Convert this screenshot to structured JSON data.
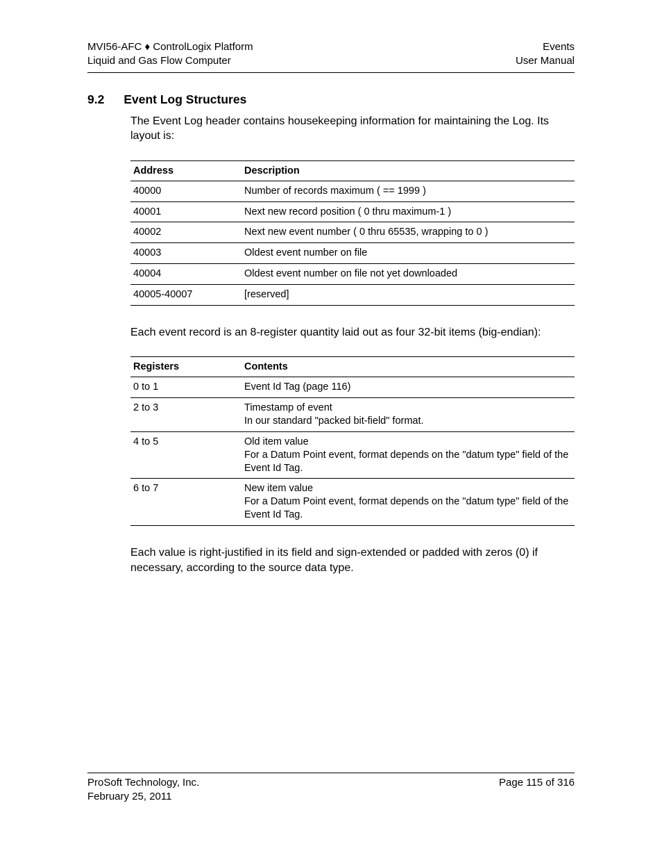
{
  "header": {
    "left_line1": "MVI56-AFC ♦ ControlLogix Platform",
    "left_line2": "Liquid and Gas Flow Computer",
    "right_line1": "Events",
    "right_line2": "User Manual"
  },
  "section": {
    "number": "9.2",
    "title": "Event Log Structures",
    "intro": "The Event Log header contains housekeeping information for maintaining the Log. Its layout is:"
  },
  "table1": {
    "col1_header": "Address",
    "col2_header": "Description",
    "rows": [
      {
        "c1": "40000",
        "c2": "Number of records maximum ( == 1999 )"
      },
      {
        "c1": "40001",
        "c2": "Next new record position ( 0 thru maximum-1 )"
      },
      {
        "c1": "40002",
        "c2": "Next new event number ( 0 thru 65535, wrapping to 0 )"
      },
      {
        "c1": "40003",
        "c2": "Oldest event number on file"
      },
      {
        "c1": "40004",
        "c2": "Oldest event number on file not yet downloaded"
      },
      {
        "c1": "40005-40007",
        "c2": "[reserved]"
      }
    ]
  },
  "mid_text": "Each event record is an 8-register quantity laid out as four 32-bit items (big-endian):",
  "table2": {
    "col1_header": "Registers",
    "col2_header": "Contents",
    "rows": [
      {
        "c1": "0 to 1",
        "c2": "Event Id Tag (page 116)"
      },
      {
        "c1": "2 to 3",
        "c2": "Timestamp of event\nIn our standard \"packed bit-field\" format."
      },
      {
        "c1": "4 to 5",
        "c2": "Old item value\nFor a Datum Point event, format depends on the \"datum type\" field of the Event Id Tag."
      },
      {
        "c1": "6 to 7",
        "c2": "New item value\nFor a Datum Point event, format depends on the \"datum type\" field of the Event Id Tag."
      }
    ]
  },
  "closing": "Each value is right-justified in its field and sign-extended or padded with zeros (0) if necessary, according to the source data type.",
  "footer": {
    "left_line1": "ProSoft Technology, Inc.",
    "left_line2": "February 25, 2011",
    "right_line1": "Page 115 of 316"
  }
}
